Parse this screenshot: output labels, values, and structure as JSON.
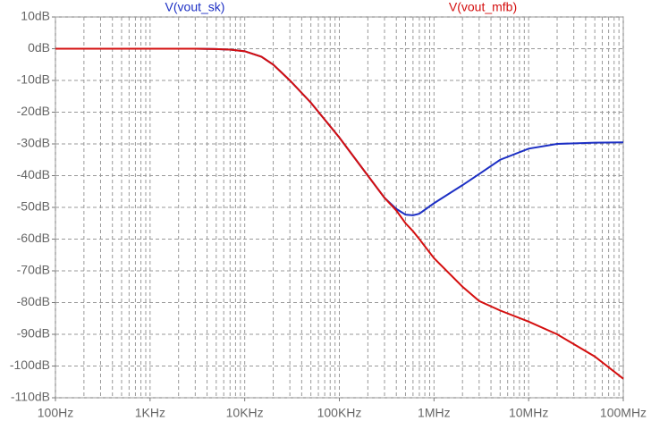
{
  "chart_data": {
    "type": "line",
    "xscale": "log",
    "grid": true,
    "x": [
      100,
      1000,
      3000,
      5000,
      7000,
      10000,
      15000,
      20000,
      30000,
      50000,
      100000,
      200000,
      300000,
      400000,
      500000,
      600000,
      700000,
      1000000,
      2000000,
      3000000,
      5000000,
      10000000,
      20000000,
      50000000,
      100000000
    ],
    "series": [
      {
        "name": "V(vout_sk)",
        "color": "#1c2fc4",
        "values": [
          0,
          0,
          0,
          -0.1,
          -0.3,
          -0.8,
          -2.5,
          -5,
          -10,
          -17,
          -28,
          -40,
          -47,
          -50.5,
          -52.3,
          -52.5,
          -52,
          -48.7,
          -43,
          -39.5,
          -35,
          -31.5,
          -30,
          -29.6,
          -29.5
        ]
      },
      {
        "name": "V(vout_mfb)",
        "color": "#d40f0f",
        "values": [
          0,
          0,
          0,
          -0.1,
          -0.3,
          -0.8,
          -2.5,
          -5,
          -10,
          -17,
          -28,
          -40,
          -47,
          -51,
          -55,
          -57.5,
          -60,
          -66,
          -75,
          -79.5,
          -82.5,
          -86,
          -90,
          -97,
          -104
        ]
      }
    ],
    "xlim": [
      100,
      100000000
    ],
    "xticks": [
      {
        "value": 100,
        "label": "100Hz"
      },
      {
        "value": 1000,
        "label": "1KHz"
      },
      {
        "value": 10000,
        "label": "10KHz"
      },
      {
        "value": 100000,
        "label": "100KHz"
      },
      {
        "value": 1000000,
        "label": "1MHz"
      },
      {
        "value": 10000000,
        "label": "10MHz"
      },
      {
        "value": 100000000,
        "label": "100MHz"
      }
    ],
    "ylim": [
      -110,
      10
    ],
    "yticks": [
      {
        "value": 10,
        "label": "10dB"
      },
      {
        "value": 0,
        "label": "0dB"
      },
      {
        "value": -10,
        "label": "-10dB"
      },
      {
        "value": -20,
        "label": "-20dB"
      },
      {
        "value": -30,
        "label": "-30dB"
      },
      {
        "value": -40,
        "label": "-40dB"
      },
      {
        "value": -50,
        "label": "-50dB"
      },
      {
        "value": -60,
        "label": "-60dB"
      },
      {
        "value": -70,
        "label": "-70dB"
      },
      {
        "value": -80,
        "label": "-80dB"
      },
      {
        "value": -90,
        "label": "-90dB"
      },
      {
        "value": -100,
        "label": "-100dB"
      },
      {
        "value": -110,
        "label": "-110dB"
      }
    ]
  }
}
